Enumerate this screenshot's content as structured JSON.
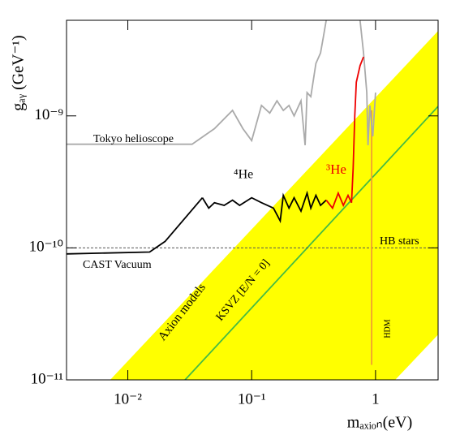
{
  "chart_data": {
    "type": "line",
    "xlog": true,
    "ylog": true,
    "x_label": "mₐₓᵢₒₙ(eV)",
    "y_label": "gₐᵧ (GeV⁻¹)",
    "xlim": [
      0.0032,
      3.2
    ],
    "ylim": [
      1e-11,
      5.3e-09
    ],
    "xticks": [
      {
        "value": 0.01,
        "label": "10⁻²"
      },
      {
        "value": 0.1,
        "label": "10⁻¹"
      },
      1
    ],
    "yticks": [
      {
        "value": 1e-11,
        "label": "10⁻¹¹"
      },
      {
        "value": 1e-10,
        "label": "10⁻¹⁰"
      },
      {
        "value": 1e-09,
        "label": "10⁻⁹"
      }
    ],
    "series": [
      {
        "name": "Axion models",
        "kind": "band",
        "color": "#ffff00",
        "x": [
          0.0072,
          3.2,
          3.2,
          1.44
        ],
        "values": [
          1e-11,
          4.4e-09,
          2.2e-11,
          1e-11
        ]
      },
      {
        "name": "KSVZ [E/N = 0]",
        "color": "#44bb44",
        "x": [
          0.029,
          3.2
        ],
        "values": [
          1e-11,
          1.18e-09
        ]
      },
      {
        "name": "HB stars",
        "color": "#555555",
        "dash": true,
        "x": [
          0.0032,
          3.2
        ],
        "values": [
          1e-10,
          1e-10
        ]
      },
      {
        "name": "HDM",
        "color": "#f0a030",
        "x": [
          0.93,
          0.93
        ],
        "values": [
          1.3e-11,
          1.1e-09
        ]
      },
      {
        "name": "Tokyo helioscope",
        "color": "#aaaaaa",
        "x": [
          0.0032,
          0.033,
          0.05,
          0.07,
          0.085,
          0.1,
          0.12,
          0.14,
          0.16,
          0.18,
          0.2,
          0.22,
          0.25,
          0.27,
          0.28,
          0.3,
          0.33,
          0.36,
          0.38,
          0.4,
          null,
          0.75,
          0.8,
          0.85,
          0.87,
          0.9,
          0.95,
          1.0
        ],
        "values": [
          6.1e-10,
          6.1e-10,
          8e-10,
          1.1e-09,
          8e-10,
          6.5e-10,
          1.2e-09,
          1.05e-09,
          1.3e-09,
          1.1e-09,
          1.2e-09,
          1e-09,
          1.3e-09,
          6e-10,
          1.5e-09,
          1.4e-09,
          2.5e-09,
          3e-09,
          4e-09,
          5.3e-09,
          null,
          5.3e-09,
          3e-09,
          1.5e-09,
          6e-10,
          1.2e-09,
          7e-10,
          1.5e-09
        ]
      },
      {
        "name": "CAST Vacuum",
        "color": "#000000",
        "x": [
          0.0032,
          0.015,
          0.02,
          0.04
        ],
        "values": [
          9e-11,
          9.3e-11,
          1.12e-10,
          2.4e-10
        ]
      },
      {
        "name": "⁴He",
        "color": "#000000",
        "x": [
          0.04,
          0.045,
          0.05,
          0.06,
          0.07,
          0.08,
          0.1,
          0.12,
          0.15,
          0.17,
          0.18,
          0.2,
          0.22,
          0.25,
          0.28,
          0.3,
          0.33,
          0.36,
          0.4
        ],
        "values": [
          2.4e-10,
          2e-10,
          2.2e-10,
          2.1e-10,
          2.3e-10,
          2.1e-10,
          2.4e-10,
          2.2e-10,
          2e-10,
          1.6e-10,
          2.5e-10,
          2e-10,
          2.4e-10,
          1.9e-10,
          2.6e-10,
          2e-10,
          2.5e-10,
          2.1e-10,
          2.3e-10
        ]
      },
      {
        "name": "³He",
        "color": "#ee0000",
        "x": [
          0.4,
          0.45,
          0.5,
          0.55,
          0.6,
          0.64,
          0.66,
          0.68,
          0.7,
          0.75,
          0.8
        ],
        "values": [
          2.3e-10,
          2e-10,
          2.6e-10,
          2.1e-10,
          2.5e-10,
          2.2e-10,
          4e-10,
          1e-09,
          1.8e-09,
          2.4e-09,
          2.8e-09
        ]
      }
    ]
  }
}
